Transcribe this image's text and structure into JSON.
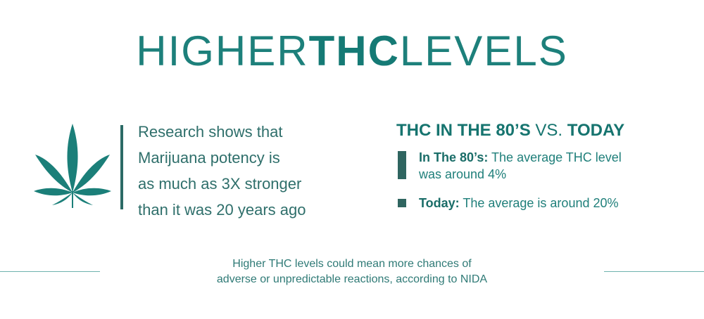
{
  "header": {
    "title_parts": [
      "HIGHER",
      "THC",
      "LEVELS"
    ]
  },
  "research": {
    "lines": [
      "Research shows that",
      "Marijuana potency is",
      "as much as 3X stronger",
      "than it was 20 years ago"
    ]
  },
  "comparison": {
    "heading_parts": [
      "THC IN THE 80’S",
      "VS.",
      "TODAY"
    ],
    "items": [
      {
        "label": "In The 80’s:",
        "text_lines": [
          "The average THC level",
          "was around 4%"
        ]
      },
      {
        "label": "Today:",
        "text_lines": [
          "The average is around 20%"
        ]
      }
    ]
  },
  "footer": {
    "lines": [
      "Higher THC levels could mean more chances of",
      "adverse or unpredictable reactions, according to NIDA"
    ]
  }
}
